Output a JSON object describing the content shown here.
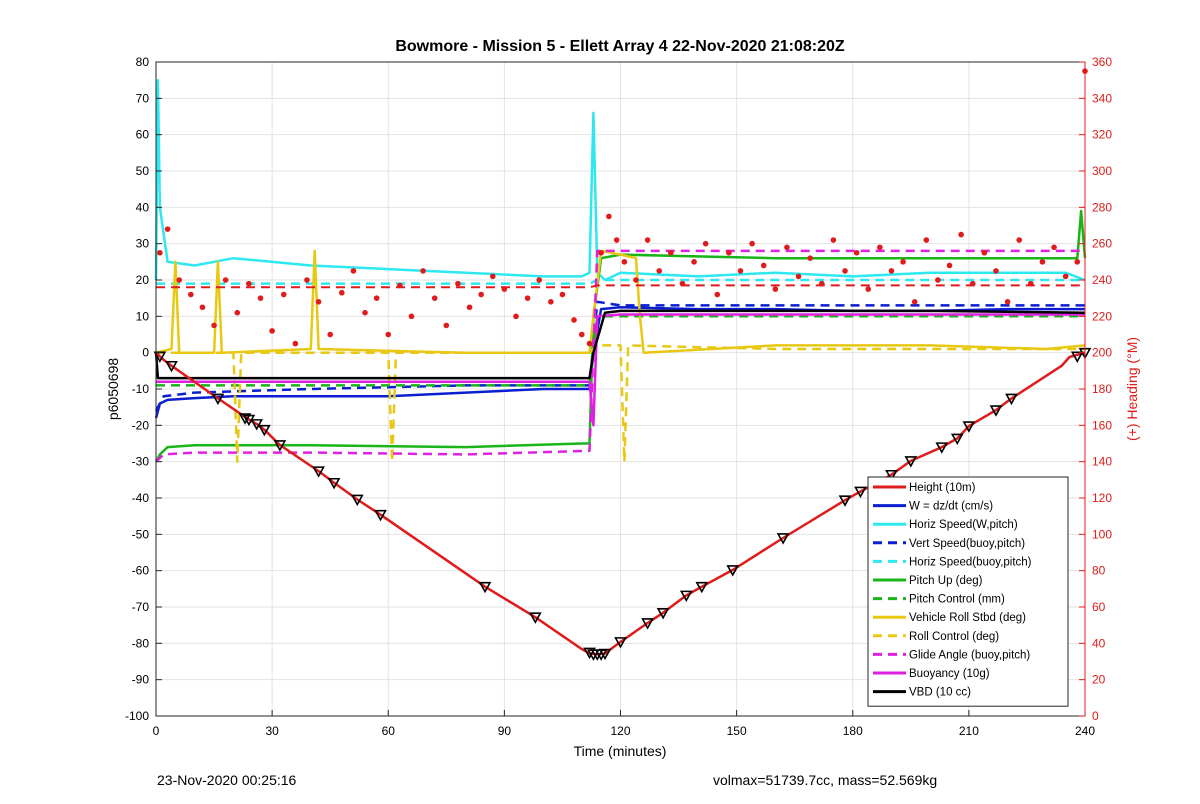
{
  "footer": {
    "left": "23-Nov-2020 00:25:16",
    "right": "volmax=51739.7cc, mass=52.569kg"
  },
  "chart_data": {
    "type": "line",
    "title": "Bowmore - Mission 5 - Ellett Array 4 22-Nov-2020 21:08:20Z",
    "xlabel": "Time (minutes)",
    "ylabel": "p6050698",
    "y2label": "(+) Heading (°M)",
    "xlim": [
      0,
      240
    ],
    "ylim": [
      -100,
      80
    ],
    "y2lim": [
      0,
      360
    ],
    "xticks": [
      0,
      30,
      60,
      90,
      120,
      150,
      180,
      210,
      240
    ],
    "yticks": [
      -100,
      -90,
      -80,
      -70,
      -60,
      -50,
      -40,
      -30,
      -20,
      -10,
      0,
      10,
      20,
      30,
      40,
      50,
      60,
      70,
      80
    ],
    "y2ticks": [
      0,
      20,
      40,
      60,
      80,
      100,
      120,
      140,
      160,
      180,
      200,
      220,
      240,
      260,
      280,
      300,
      320,
      340,
      360
    ],
    "grid": true,
    "legend_position": "bottom-right",
    "colors": {
      "height": "#e01b1b",
      "w": "#0a1fd0",
      "horiz_speed": "#2ee8f0",
      "pitch": "#18b418",
      "roll": "#e8c812",
      "glide": "#e020e0",
      "buoyancy": "#e020e0",
      "vbd": "#000000",
      "heading": "#e01b1b",
      "y2axis": "#e01b1b"
    },
    "series": [
      {
        "name": "Height (10m)",
        "style": "solid",
        "color": "#e01b1b",
        "x": [
          0,
          2,
          4,
          16,
          24,
          26,
          28,
          32,
          42,
          46,
          52,
          58,
          85,
          98,
          110,
          112,
          114,
          116,
          120,
          127,
          131,
          137,
          141,
          149,
          162,
          178,
          182,
          190,
          195,
          203,
          207,
          210,
          210,
          217,
          221,
          234,
          236,
          240
        ],
        "y": [
          0,
          -2,
          -3.6,
          -12.6,
          -18.4,
          -19.6,
          -21.2,
          -25.4,
          -32.6,
          -35.8,
          -40.4,
          -44.6,
          -64.4,
          -72.8,
          -81.6,
          -82.8,
          -83,
          -82.8,
          -79.6,
          -74.4,
          -71.6,
          -66.8,
          -64.4,
          -59.8,
          -51,
          -40.6,
          -38.2,
          -33.6,
          -29.8,
          -26,
          -23.6,
          -20.2,
          -20.2,
          -15.8,
          -12.6,
          -3.6,
          -1.2,
          0
        ]
      },
      {
        "name": "W = dz/dt (cm/s)",
        "style": "solid",
        "color": "#0a1fd0",
        "x": [
          0,
          1,
          3,
          10,
          20,
          40,
          60,
          80,
          100,
          112,
          113,
          115,
          120,
          140,
          160,
          180,
          200,
          220,
          235,
          240
        ],
        "y": [
          -18,
          -14,
          -13,
          -12.5,
          -12,
          -12,
          -12,
          -11,
          -10,
          -10,
          0,
          12,
          12.5,
          12,
          12,
          11.5,
          11.5,
          12,
          12,
          12
        ]
      },
      {
        "name": "Horiz Speed(W,pitch)",
        "style": "solid",
        "color": "#2ee8f0",
        "x": [
          0,
          0.5,
          1,
          3,
          10,
          20,
          40,
          60,
          80,
          100,
          110,
          112,
          113,
          114,
          116,
          120,
          140,
          160,
          180,
          200,
          220,
          235,
          240
        ],
        "y": [
          20,
          75,
          40,
          25,
          24,
          26,
          24,
          23,
          22,
          21,
          21,
          22,
          66,
          22,
          20,
          22,
          21,
          22,
          21,
          22,
          22,
          22,
          20
        ]
      },
      {
        "name": "Vert Speed(buoy,pitch)",
        "style": "dash",
        "color": "#0a1fd0",
        "x": [
          0,
          2,
          10,
          40,
          80,
          112,
          114,
          120,
          160,
          200,
          240
        ],
        "y": [
          -16,
          -12,
          -11,
          -10,
          -9,
          -9,
          14,
          13,
          13,
          13,
          13
        ]
      },
      {
        "name": "Horiz Speed(buoy,pitch)",
        "style": "dash",
        "color": "#2ee8f0",
        "x": [
          0,
          2,
          40,
          80,
          112,
          114,
          160,
          200,
          240
        ],
        "y": [
          19,
          19,
          19,
          19,
          19,
          20,
          20,
          20,
          20
        ]
      },
      {
        "name": "Pitch Up (deg)",
        "style": "solid",
        "color": "#18b418",
        "x": [
          0,
          1,
          3,
          10,
          40,
          80,
          110,
          112,
          113,
          115,
          120,
          160,
          200,
          238,
          239,
          240
        ],
        "y": [
          -30,
          -28,
          -26,
          -25.5,
          -25.5,
          -26,
          -25,
          -25,
          10,
          26,
          27,
          26,
          26,
          26,
          39,
          26
        ]
      },
      {
        "name": "Pitch Control (mm)",
        "style": "dash",
        "color": "#18b418",
        "x": [
          0,
          3,
          40,
          80,
          112,
          114,
          120,
          160,
          200,
          240
        ],
        "y": [
          -9,
          -9,
          -9,
          -9,
          -9,
          10,
          10,
          10,
          10,
          10
        ]
      },
      {
        "name": "Vehicle Roll Stbd (deg)",
        "style": "solid",
        "color": "#e8c812",
        "x": [
          0,
          4,
          5,
          6,
          10,
          15,
          16,
          17,
          40,
          41,
          42,
          80,
          112,
          113,
          115,
          120,
          124,
          125,
          126,
          160,
          200,
          230,
          240
        ],
        "y": [
          0,
          1,
          25,
          0,
          0,
          0,
          25,
          0,
          1,
          28,
          1,
          0,
          0,
          10,
          28,
          27,
          26,
          10,
          0,
          2,
          2,
          1,
          2
        ]
      },
      {
        "name": "Roll Control (deg)",
        "style": "dash",
        "color": "#e8c812",
        "x": [
          0,
          20,
          21,
          22,
          60,
          61,
          62,
          100,
          112,
          114,
          120,
          121,
          122,
          160,
          200,
          240
        ],
        "y": [
          0,
          0,
          -30,
          0,
          0,
          -30,
          0,
          0,
          0,
          2,
          2,
          -30,
          2,
          1,
          1,
          1
        ]
      },
      {
        "name": "Glide Angle (buoy,pitch)",
        "style": "dash",
        "color": "#e020e0",
        "x": [
          0,
          2,
          10,
          40,
          80,
          112,
          114,
          120,
          160,
          200,
          240
        ],
        "y": [
          -30,
          -28,
          -27.5,
          -27.5,
          -28,
          -27,
          28,
          28,
          28,
          28,
          28
        ]
      },
      {
        "name": "Buoyancy (10g)",
        "style": "solid",
        "color": "#e020e0",
        "x": [
          0,
          40,
          80,
          112,
          113,
          114,
          120,
          160,
          200,
          240
        ],
        "y": [
          -8,
          -8,
          -8,
          -8,
          -20,
          10,
          10.5,
          10.5,
          10.5,
          10.5
        ]
      },
      {
        "name": "VBD (10 cc)",
        "style": "solid",
        "color": "#000000",
        "x": [
          0,
          0.5,
          40,
          80,
          112,
          113,
          116,
          120,
          160,
          200,
          240
        ],
        "y": [
          0,
          -7,
          -7,
          -7,
          -7,
          0,
          11,
          11.5,
          11.5,
          11.5,
          11
        ]
      }
    ],
    "heading_dashed_y2": {
      "x": [
        0,
        112,
        114,
        240
      ],
      "y2": [
        236,
        236,
        237,
        237
      ]
    },
    "heading_y2": {
      "x": [
        1,
        3,
        6,
        9,
        12,
        15,
        18,
        21,
        24,
        27,
        30,
        33,
        36,
        39,
        42,
        45,
        48,
        51,
        54,
        57,
        60,
        63,
        66,
        69,
        72,
        75,
        78,
        81,
        84,
        87,
        90,
        93,
        96,
        99,
        102,
        105,
        108,
        110,
        112,
        115,
        117,
        119,
        121,
        124,
        127,
        130,
        133,
        136,
        139,
        142,
        145,
        148,
        151,
        154,
        157,
        160,
        163,
        166,
        169,
        172,
        175,
        178,
        181,
        184,
        187,
        190,
        193,
        196,
        199,
        202,
        205,
        208,
        211,
        214,
        217,
        220,
        223,
        226,
        229,
        232,
        235,
        238,
        240
      ],
      "y2": [
        255,
        268,
        240,
        232,
        225,
        215,
        240,
        222,
        238,
        230,
        212,
        232,
        205,
        240,
        228,
        210,
        233,
        245,
        222,
        230,
        210,
        237,
        220,
        245,
        230,
        215,
        238,
        225,
        232,
        242,
        235,
        220,
        230,
        240,
        228,
        232,
        218,
        210,
        205,
        255,
        275,
        262,
        250,
        240,
        262,
        245,
        255,
        238,
        250,
        260,
        232,
        255,
        245,
        260,
        248,
        235,
        258,
        242,
        252,
        238,
        262,
        245,
        255,
        235,
        258,
        245,
        250,
        228,
        262,
        240,
        248,
        265,
        238,
        255,
        245,
        228,
        262,
        238,
        250,
        258,
        242,
        250,
        355
      ]
    },
    "markers": {
      "x": [
        1,
        4,
        16,
        23,
        24,
        26,
        28,
        32,
        42,
        46,
        52,
        58,
        85,
        98,
        112,
        113,
        114,
        115,
        116,
        120,
        127,
        131,
        137,
        141,
        149,
        162,
        178,
        182,
        190,
        195,
        203,
        207,
        210,
        217,
        221,
        238,
        240
      ],
      "y": [
        -1,
        -3.6,
        -12.6,
        -18,
        -18.4,
        -19.6,
        -21.2,
        -25.4,
        -32.6,
        -35.8,
        -40.4,
        -44.6,
        -64.4,
        -72.8,
        -82.5,
        -83,
        -83,
        -83,
        -82.8,
        -79.6,
        -74.4,
        -71.6,
        -66.8,
        -64.4,
        -59.8,
        -51,
        -40.6,
        -38.2,
        -33.6,
        -29.8,
        -26,
        -23.6,
        -20.2,
        -15.8,
        -12.6,
        -1,
        0
      ]
    },
    "legend": [
      "Height (10m)",
      "W = dz/dt (cm/s)",
      "Horiz Speed(W,pitch)",
      "Vert Speed(buoy,pitch)",
      "Horiz Speed(buoy,pitch)",
      "Pitch Up (deg)",
      "Pitch Control (mm)",
      "Vehicle Roll Stbd (deg)",
      "Roll Control (deg)",
      "Glide Angle (buoy,pitch)",
      "Buoyancy (10g)",
      "VBD (10 cc)"
    ]
  }
}
